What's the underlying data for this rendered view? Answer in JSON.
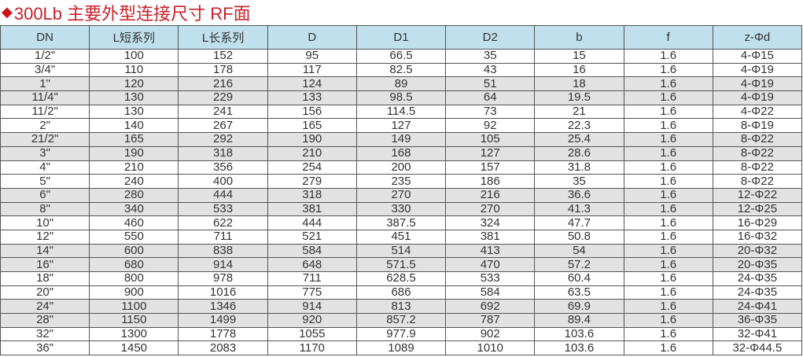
{
  "title": "300Lb 主要外型连接尺寸  RF面",
  "icons": {
    "bullet": "diamond-icon"
  },
  "colors": {
    "title": "#c8202a",
    "header_bg": "#bfe0ec",
    "alt_row_bg": "#e2e2e2"
  },
  "table": {
    "headers": [
      "DN",
      "L短系列",
      "L长系列",
      "D",
      "D1",
      "D2",
      "b",
      "f",
      "z-Φd"
    ],
    "rows": [
      [
        "1/2\"",
        "100",
        "152",
        "95",
        "66.5",
        "35",
        "15",
        "1.6",
        "4-Φ15"
      ],
      [
        "3/4\"",
        "110",
        "178",
        "117",
        "82.5",
        "43",
        "16",
        "1.6",
        "4-Φ19"
      ],
      [
        "1\"",
        "120",
        "216",
        "124",
        "89",
        "51",
        "18",
        "1.6",
        "4-Φ19"
      ],
      [
        "11/4\"",
        "130",
        "229",
        "133",
        "98.5",
        "64",
        "19.5",
        "1.6",
        "4-Φ19"
      ],
      [
        "11/2\"",
        "130",
        "241",
        "156",
        "114.5",
        "73",
        "21",
        "1.6",
        "4-Φ22"
      ],
      [
        "2\"",
        "140",
        "267",
        "165",
        "127",
        "92",
        "22.3",
        "1.6",
        "8-Φ19"
      ],
      [
        "21/2\"",
        "165",
        "292",
        "190",
        "149",
        "105",
        "25.4",
        "1.6",
        "8-Φ22"
      ],
      [
        "3\"",
        "190",
        "318",
        "210",
        "168",
        "127",
        "28.6",
        "1.6",
        "8-Φ22"
      ],
      [
        "4\"",
        "210",
        "356",
        "254",
        "200",
        "157",
        "31.8",
        "1.6",
        "8-Φ22"
      ],
      [
        "5\"",
        "240",
        "400",
        "279",
        "235",
        "186",
        "35",
        "1.6",
        "8-Φ22"
      ],
      [
        "6\"",
        "280",
        "444",
        "318",
        "270",
        "216",
        "36.6",
        "1.6",
        "12-Φ22"
      ],
      [
        "8\"",
        "340",
        "533",
        "381",
        "330",
        "270",
        "41.3",
        "1.6",
        "12-Φ25"
      ],
      [
        "10\"",
        "460",
        "622",
        "444",
        "387.5",
        "324",
        "47.7",
        "1.6",
        "16-Φ29"
      ],
      [
        "12\"",
        "550",
        "711",
        "521",
        "451",
        "381",
        "50.8",
        "1.6",
        "16-Φ32"
      ],
      [
        "14\"",
        "600",
        "838",
        "584",
        "514",
        "413",
        "54",
        "1.6",
        "20-Φ32"
      ],
      [
        "16\"",
        "680",
        "914",
        "648",
        "571.5",
        "470",
        "57.2",
        "1.6",
        "20-Φ35"
      ],
      [
        "18\"",
        "800",
        "978",
        "711",
        "628.5",
        "533",
        "60.4",
        "1.6",
        "24-Φ35"
      ],
      [
        "20\"",
        "900",
        "1016",
        "775",
        "686",
        "584",
        "63.5",
        "1.6",
        "24-Φ35"
      ],
      [
        "24\"",
        "1100",
        "1346",
        "914",
        "813",
        "692",
        "69.9",
        "1.6",
        "24-Φ41"
      ],
      [
        "28\"",
        "1150",
        "1499",
        "920",
        "857.2",
        "787",
        "89.4",
        "1.6",
        "36-Φ35"
      ],
      [
        "32\"",
        "1300",
        "1778",
        "1055",
        "977.9",
        "902",
        "103.6",
        "1.6",
        "32-Φ41"
      ],
      [
        "36\"",
        "1450",
        "2083",
        "1170",
        "1089",
        "1010",
        "103.6",
        "1.6",
        "32-Φ44.5"
      ]
    ]
  }
}
